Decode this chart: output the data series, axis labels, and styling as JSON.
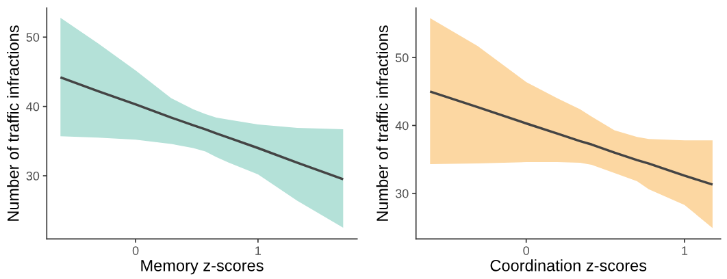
{
  "chart_data": [
    {
      "type": "line",
      "xlabel": "Memory z-scores",
      "ylabel": "Number of traffic infractions",
      "xlim": [
        -0.726,
        1.81
      ],
      "ylim": [
        20.9,
        54.2
      ],
      "xticks": [
        0,
        1
      ],
      "yticks": [
        30,
        40,
        50
      ],
      "grid": false,
      "colors": [
        "#b4e1d8"
      ],
      "series": [
        {
          "color": "#444444",
          "x": [
            -0.614,
            -0.306,
            0,
            0.29,
            0.47,
            0.57,
            0.66,
            0.76,
            1.0,
            1.32,
            1.696
          ],
          "values": [
            44.2,
            42.2,
            40.3,
            38.4,
            37.3,
            36.7,
            36.1,
            35.5,
            34.0,
            31.9,
            29.5
          ],
          "lower": [
            35.7,
            35.5,
            35.2,
            34.6,
            34.0,
            33.5,
            32.7,
            31.9,
            30.2,
            26.4,
            22.5
          ],
          "upper": [
            52.8,
            49.1,
            45.2,
            41.2,
            39.6,
            38.9,
            38.4,
            38.1,
            37.4,
            36.9,
            36.7
          ]
        }
      ]
    },
    {
      "type": "line",
      "xlabel": "Coordination z-scores",
      "ylabel": "Number of traffic infractions",
      "xlim": [
        -0.696,
        1.228
      ],
      "ylim": [
        23.3,
        57.3
      ],
      "xticks": [
        0,
        1
      ],
      "yticks": [
        30,
        40,
        50
      ],
      "grid": false,
      "colors": [
        "#fcd7a2"
      ],
      "series": [
        {
          "color": "#444444",
          "x": [
            -0.607,
            -0.307,
            0,
            0.197,
            0.34,
            0.413,
            0.557,
            0.7,
            0.774,
            1.0,
            1.177
          ],
          "values": [
            45.0,
            42.7,
            40.3,
            38.8,
            37.7,
            37.2,
            36.0,
            34.9,
            34.4,
            32.6,
            31.3
          ],
          "lower": [
            34.3,
            34.4,
            34.6,
            34.6,
            34.5,
            34.2,
            33.0,
            31.8,
            30.6,
            28.3,
            24.9
          ],
          "upper": [
            55.8,
            51.7,
            46.4,
            44.0,
            42.4,
            41.3,
            39.3,
            38.3,
            38.0,
            37.8,
            37.8
          ]
        }
      ]
    }
  ]
}
